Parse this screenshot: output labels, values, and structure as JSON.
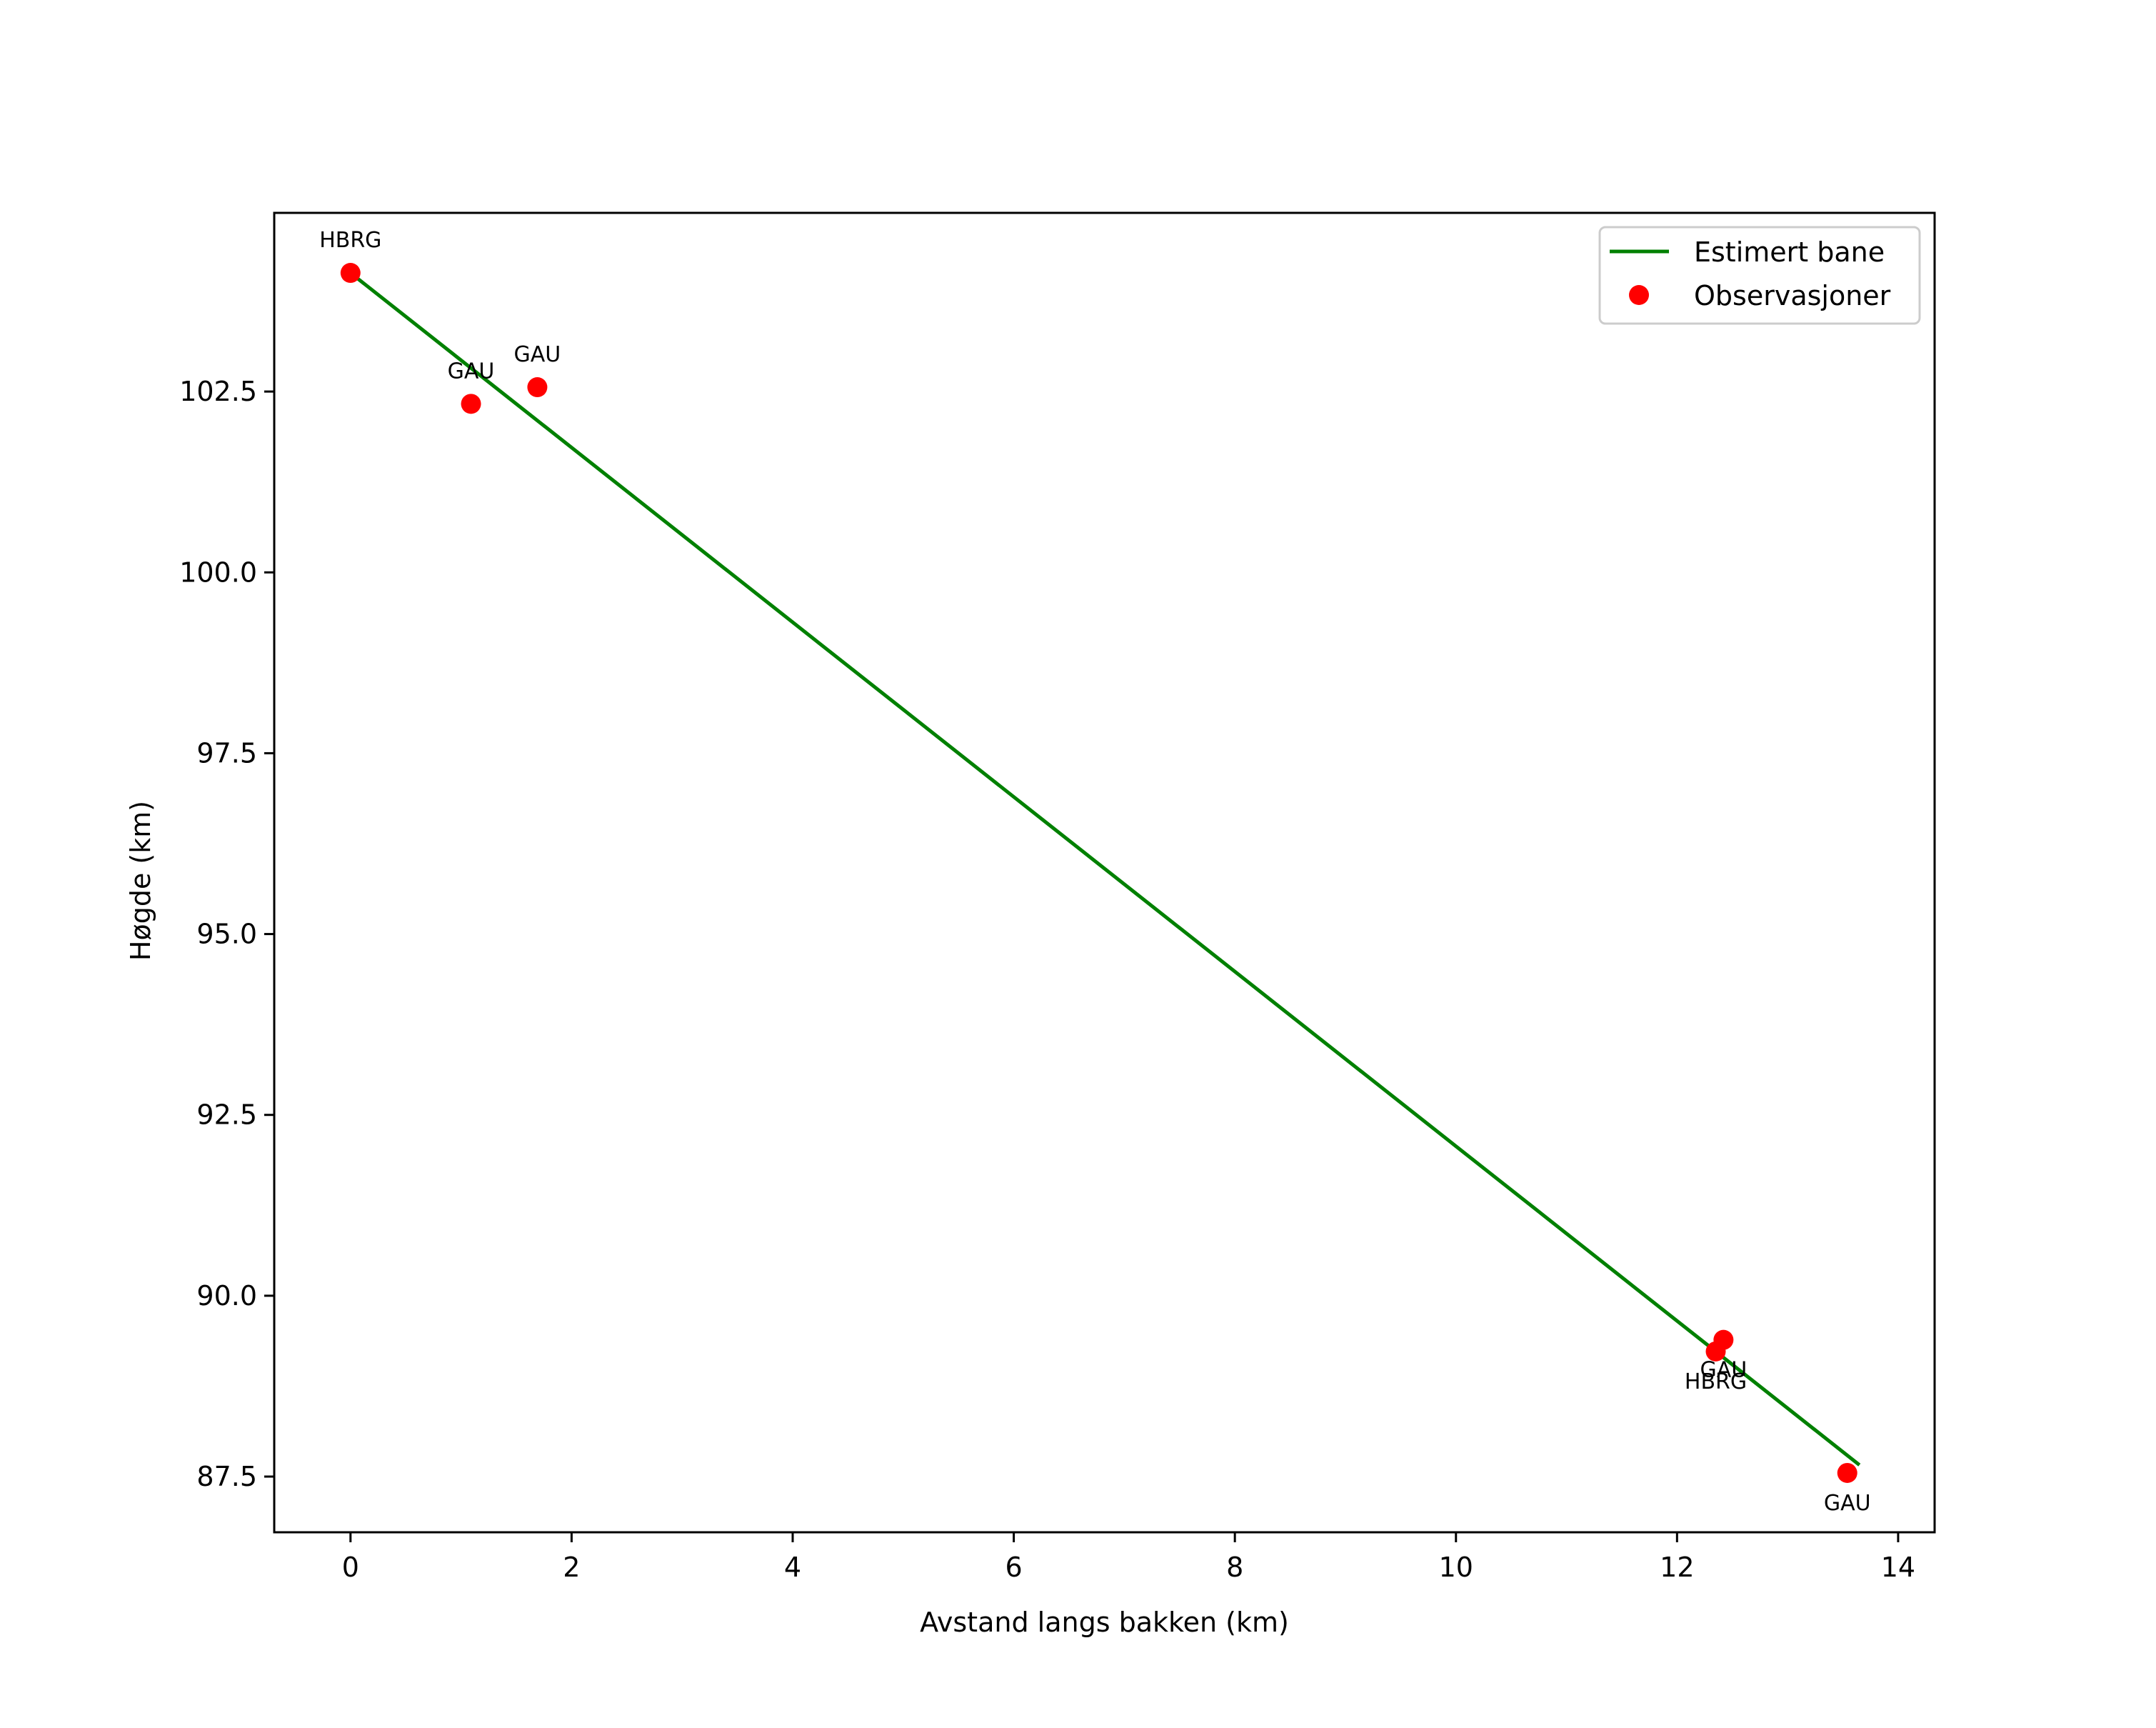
{
  "chart_data": {
    "type": "line+scatter",
    "title": "",
    "xlabel": "Avstand langs bakken (km)",
    "ylabel": "Høgde (km)",
    "xlim": [
      -0.69,
      14.33
    ],
    "ylim": [
      86.73,
      104.97
    ],
    "xticks": [
      0,
      2,
      4,
      6,
      8,
      10,
      12,
      14
    ],
    "xtick_labels": [
      "0",
      "2",
      "4",
      "6",
      "8",
      "10",
      "12",
      "14"
    ],
    "yticks": [
      87.5,
      90.0,
      92.5,
      95.0,
      97.5,
      100.0,
      102.5
    ],
    "ytick_labels": [
      "87.5",
      "90.0",
      "92.5",
      "95.0",
      "97.5",
      "100.0",
      "102.5"
    ],
    "grid": false,
    "legend_position": "upper right",
    "series": [
      {
        "name": "Estimert bane",
        "kind": "line",
        "color": "#008000",
        "x": [
          0.0,
          13.65
        ],
        "y": [
          104.14,
          87.66
        ]
      },
      {
        "name": "Observasjoner",
        "kind": "scatter",
        "color": "#ff0000",
        "points": [
          {
            "x": 0.0,
            "y": 104.14,
            "label": "HBRG",
            "label_pos": "above"
          },
          {
            "x": 1.09,
            "y": 102.33,
            "label": "GAU",
            "label_pos": "above"
          },
          {
            "x": 1.69,
            "y": 102.56,
            "label": "GAU",
            "label_pos": "above"
          },
          {
            "x": 12.42,
            "y": 89.39,
            "label": "GAU",
            "label_pos": "below"
          },
          {
            "x": 12.35,
            "y": 89.23,
            "label": "HBRG",
            "label_pos": "below"
          },
          {
            "x": 13.54,
            "y": 87.55,
            "label": "GAU",
            "label_pos": "below"
          }
        ]
      }
    ]
  },
  "legend": {
    "items": [
      {
        "label": "Estimert bane",
        "marker": "line",
        "color": "#008000"
      },
      {
        "label": "Observasjoner",
        "marker": "dot",
        "color": "#ff0000"
      }
    ]
  }
}
